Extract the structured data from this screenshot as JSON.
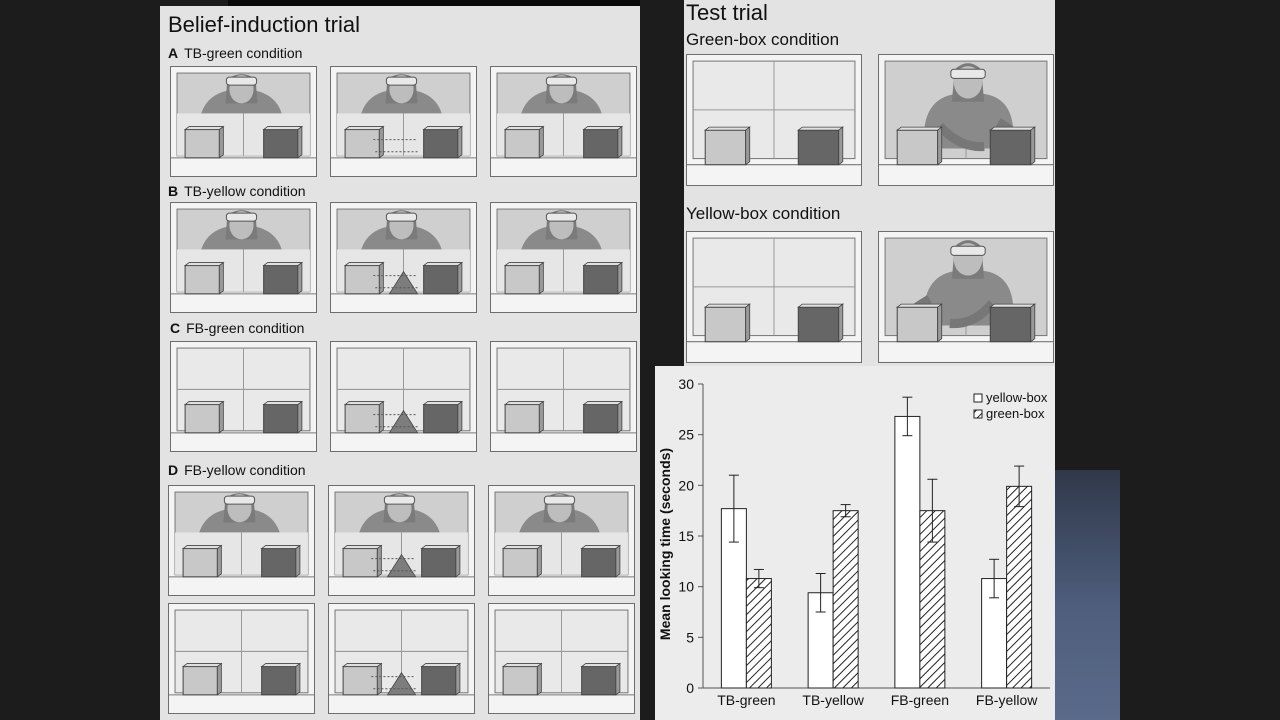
{
  "left": {
    "title": "Belief-induction trial",
    "conditions": [
      {
        "letter": "A",
        "label": "TB-green condition"
      },
      {
        "letter": "B",
        "label": "TB-yellow condition"
      },
      {
        "letter": "C",
        "label": "FB-green condition"
      },
      {
        "letter": "D",
        "label": "FB-yellow condition"
      }
    ]
  },
  "test": {
    "title": "Test trial",
    "conditions": [
      "Green-box condition",
      "Yellow-box condition"
    ]
  },
  "colors": {
    "panel_bg": "#e3e3e3",
    "yellow_box": "#c8c8c8",
    "green_box": "#666666",
    "chart_bg": "#ececec"
  },
  "chart_data": {
    "type": "bar",
    "categories": [
      "TB-green",
      "TB-yellow",
      "FB-green",
      "FB-yellow"
    ],
    "series": [
      {
        "name": "yellow-box",
        "values": [
          17.7,
          9.4,
          26.8,
          10.8
        ],
        "errors": [
          3.3,
          1.9,
          1.9,
          1.9
        ],
        "pattern": "plain"
      },
      {
        "name": "green-box",
        "values": [
          10.8,
          17.5,
          17.5,
          19.9
        ],
        "errors": [
          0.9,
          0.6,
          3.1,
          2.0
        ],
        "pattern": "hatched"
      }
    ],
    "ylabel": "Mean looking time (seconds)",
    "xlabel": "",
    "ylim": [
      0,
      30
    ],
    "yticks": [
      "0",
      "5",
      "10",
      "15",
      "20",
      "25",
      "30"
    ],
    "grid": false,
    "legend_position": "top-right"
  }
}
